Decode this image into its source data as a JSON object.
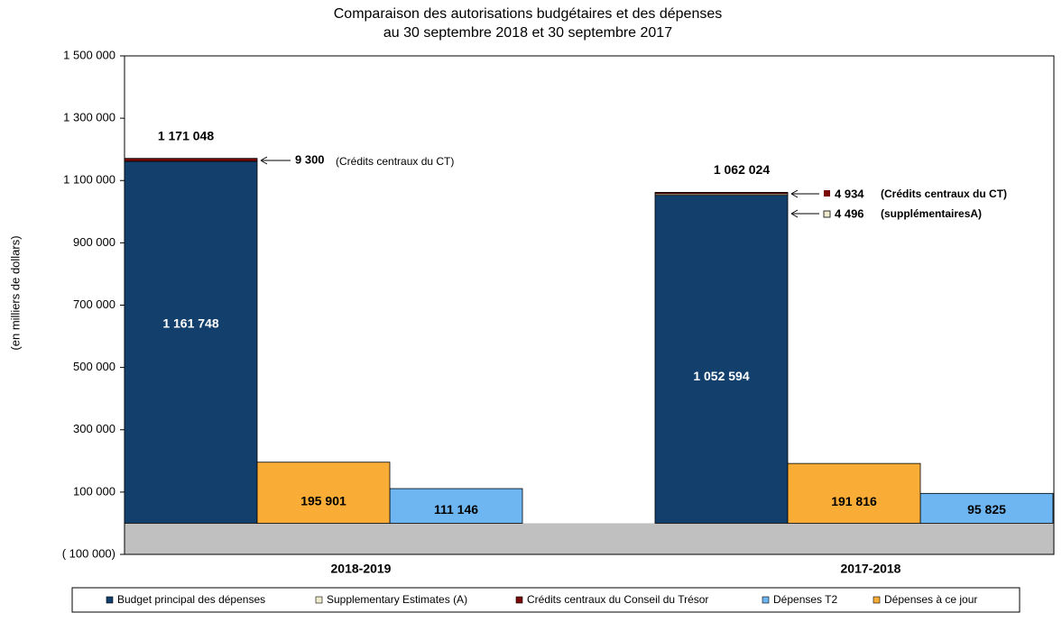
{
  "chart_data": {
    "type": "bar",
    "title": [
      "Comparaison des autorisations budgétaires et des dépenses",
      "au 30 septembre 2018 et 30 septembre 2017"
    ],
    "y_label": "(en milliers de dollars)",
    "categories": [
      "2018-2019",
      "2017-2018"
    ],
    "series": [
      {
        "name": "Budget principal des dépenses",
        "color": "#123f6c",
        "values": [
          1161748,
          1052594
        ],
        "value_labels": [
          "1 161 748",
          "1 052 594"
        ]
      },
      {
        "name": "Supplementary Estimates (A)",
        "color": "#efeccd",
        "values": [
          null,
          4496
        ],
        "value_labels": [
          null,
          "4 496"
        ]
      },
      {
        "name": "Crédits centraux du Conseil du Trésor",
        "color": "#7a0a0a",
        "values": [
          9300,
          4934
        ],
        "value_labels": [
          "9 300",
          "4 934"
        ]
      },
      {
        "name": "Dépenses T2",
        "color": "#6db6f2",
        "values": [
          111146,
          95825
        ],
        "value_labels": [
          "111 146",
          "95 825"
        ]
      },
      {
        "name": "Dépenses à ce jour",
        "color": "#f9ad37",
        "values": [
          195901,
          191816
        ],
        "value_labels": [
          "195 901",
          "191 816"
        ]
      }
    ],
    "totals": {
      "values": [
        1171048,
        1062024
      ],
      "labels": [
        "1 171 048",
        "1 062 024"
      ]
    },
    "annotations": [
      "(Crédits centraux du CT)",
      "(Crédits centraux du CT)",
      "(supplémentairesA)"
    ],
    "ylim": [
      -100000,
      1500000
    ],
    "yticks": [
      {
        "value": -100000,
        "label": "( 100 000)"
      },
      {
        "value": 100000,
        "label": "100 000"
      },
      {
        "value": 300000,
        "label": "300 000"
      },
      {
        "value": 500000,
        "label": "500 000"
      },
      {
        "value": 700000,
        "label": "700 000"
      },
      {
        "value": 900000,
        "label": "900 000"
      },
      {
        "value": 1100000,
        "label": "1 100 000"
      },
      {
        "value": 1300000,
        "label": "1 300 000"
      },
      {
        "value": 1500000,
        "label": "1 500 000"
      }
    ],
    "grid": false,
    "legend": "bottom"
  }
}
